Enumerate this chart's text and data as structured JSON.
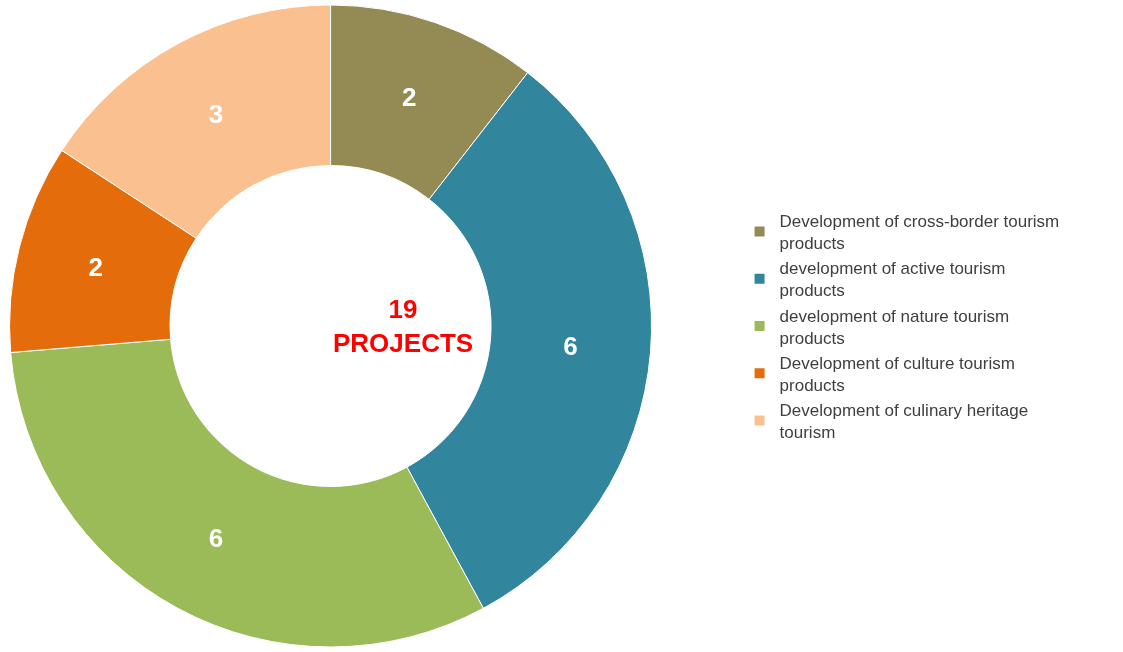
{
  "chart_data": {
    "type": "donut",
    "categories": [
      "Development of cross-border tourism products",
      "development of active tourism products",
      "development of nature tourism products",
      "Development of culture tourism products",
      "Development of culinary heritage tourism"
    ],
    "values": [
      2,
      6,
      6,
      2,
      3
    ],
    "colors": [
      "#948a54",
      "#31859c",
      "#9bbb59",
      "#e46c0a",
      "#fac090"
    ],
    "data_labels": true,
    "legend": "right",
    "annotations": [
      "19\nPROJECTS"
    ]
  }
}
